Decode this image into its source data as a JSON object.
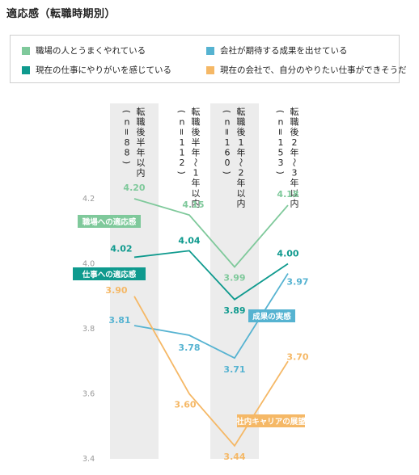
{
  "title": "適応感（転職時期別）",
  "legend": [
    {
      "label": "職場の人とうまくやれている",
      "color": "#7fc99b"
    },
    {
      "label": "会社が期待する成果を出せている",
      "color": "#56b3d1"
    },
    {
      "label": "現在の仕事にやりがいを感じている",
      "color": "#0f9a8e"
    },
    {
      "label": "現在の会社で、自分のやりたい仕事ができそうだ",
      "color": "#f5b866"
    }
  ],
  "chart_data": {
    "type": "line",
    "categories": [
      "転職後半年以内",
      "転職後半年〜1年以内",
      "転職後1年〜2年以内",
      "転職後2年〜3年以内"
    ],
    "sample_sizes": [
      "(n=88)",
      "(n=112)",
      "(n=160)",
      "(n=153)"
    ],
    "ylim": [
      3.4,
      4.2
    ],
    "yticks": [
      "4.2",
      "4.0",
      "3.8",
      "3.6",
      "3.4"
    ],
    "series": [
      {
        "name": "職場の人とうまくやれている",
        "values": [
          4.2,
          4.15,
          3.99,
          4.18
        ],
        "labels": [
          "4.20",
          "4.15",
          "3.99",
          "4.18"
        ],
        "color": "#7fc99b",
        "tag": "職場への適応感"
      },
      {
        "name": "現在の仕事にやりがいを感じている",
        "values": [
          4.02,
          4.04,
          3.89,
          4.0
        ],
        "labels": [
          "4.02",
          "4.04",
          "3.89",
          "4.00"
        ],
        "color": "#0f9a8e",
        "tag": "仕事への適応感"
      },
      {
        "name": "会社が期待する成果を出せている",
        "values": [
          3.81,
          3.78,
          3.71,
          3.97
        ],
        "labels": [
          "3.81",
          "3.78",
          "3.71",
          "3.97"
        ],
        "color": "#56b3d1",
        "tag": "成果の実感"
      },
      {
        "name": "現在の会社で、自分のやりたい仕事ができそうだ",
        "values": [
          3.9,
          3.6,
          3.44,
          3.7
        ],
        "labels": [
          "3.90",
          "3.60",
          "3.44",
          "3.70"
        ],
        "color": "#f5b866",
        "tag": "社内キャリアの展望"
      }
    ],
    "grid": false,
    "legend_position": "top"
  }
}
